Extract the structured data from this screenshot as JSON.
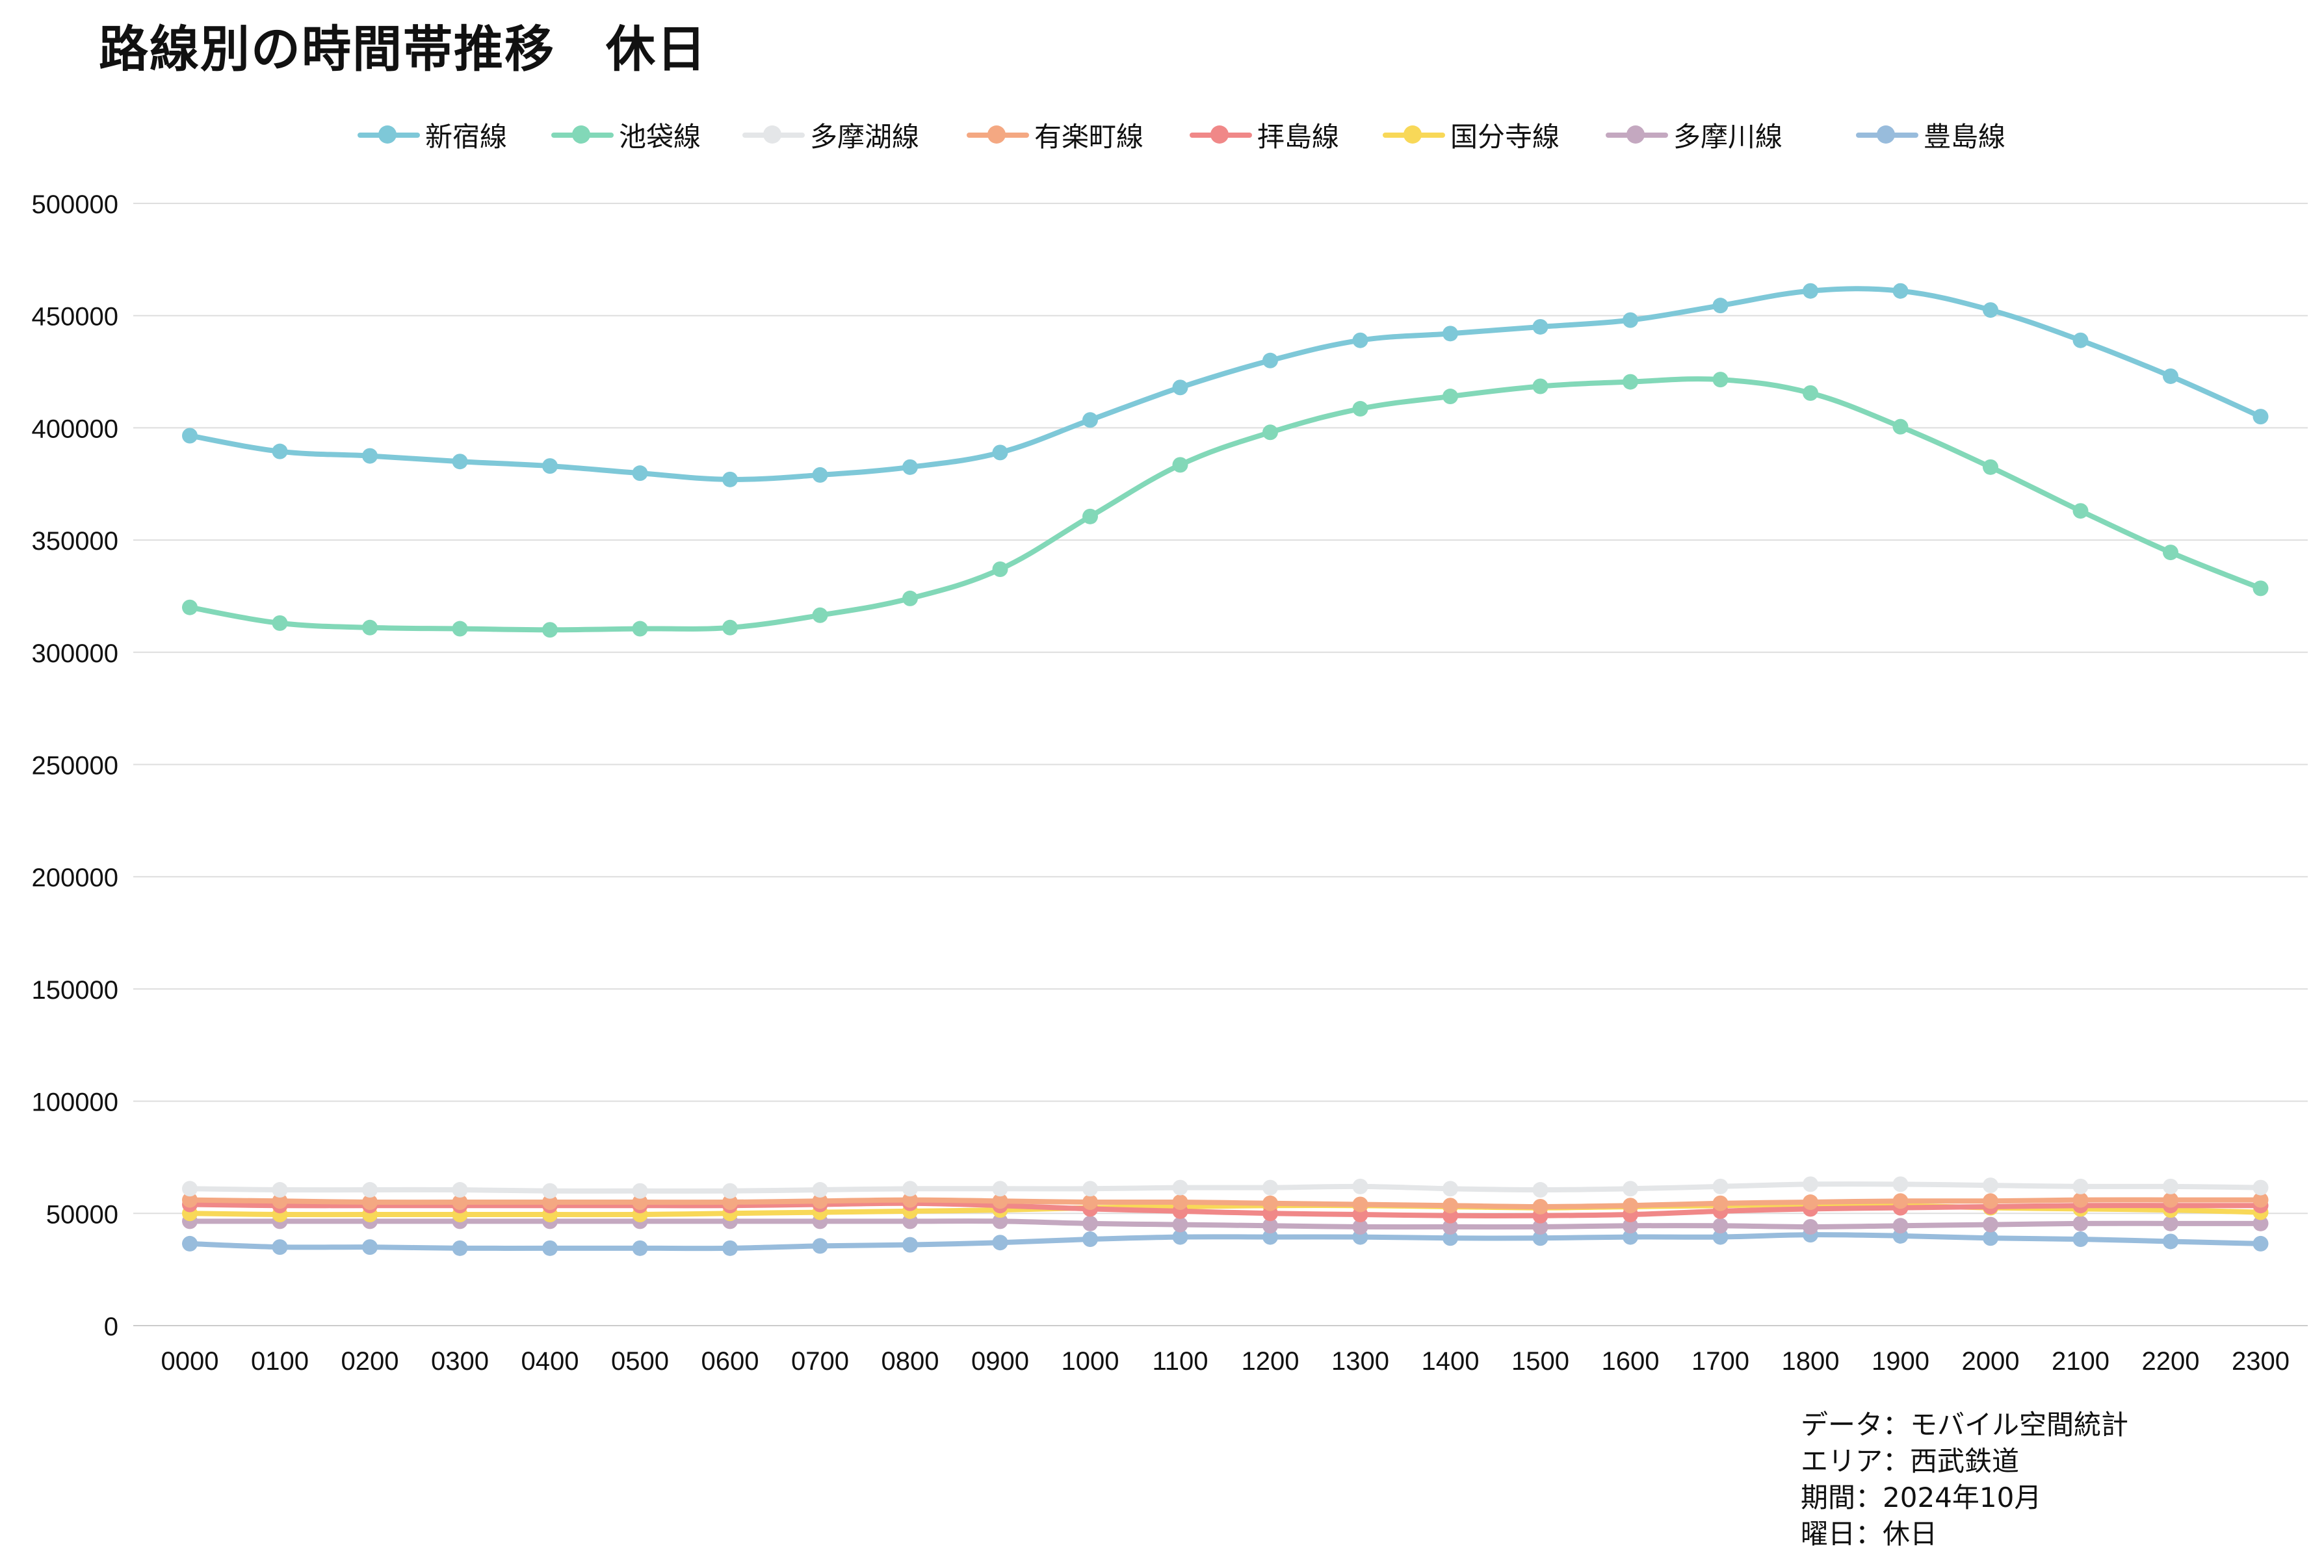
{
  "title": "路線別の時間帯推移　休日",
  "chart_data": {
    "type": "line",
    "title": "路線別の時間帯推移　休日",
    "xlabel": "",
    "ylabel": "",
    "ylim": [
      0,
      500000
    ],
    "yticks": [
      0,
      50000,
      100000,
      150000,
      200000,
      250000,
      300000,
      350000,
      400000,
      450000,
      500000
    ],
    "grid": true,
    "legend_position": "top",
    "categories": [
      "0000",
      "0100",
      "0200",
      "0300",
      "0400",
      "0500",
      "0600",
      "0700",
      "0800",
      "0900",
      "1000",
      "1100",
      "1200",
      "1300",
      "1400",
      "1500",
      "1600",
      "1700",
      "1800",
      "1900",
      "2000",
      "2100",
      "2200",
      "2300"
    ],
    "series": [
      {
        "name": "新宿線",
        "color": "#7ec8d8",
        "values": [
          396500,
          389500,
          387500,
          385000,
          383000,
          379800,
          377000,
          379000,
          382500,
          389000,
          403500,
          418000,
          430000,
          439000,
          442000,
          445000,
          448000,
          454500,
          461000,
          461000,
          452500,
          439000,
          423000,
          405000
        ]
      },
      {
        "name": "池袋線",
        "color": "#82d8b8",
        "values": [
          320000,
          313000,
          311000,
          310500,
          310000,
          310500,
          311000,
          316500,
          324000,
          337000,
          360500,
          383500,
          398000,
          408500,
          414000,
          418500,
          420500,
          421500,
          415500,
          400500,
          382500,
          363000,
          344500,
          328500
        ]
      },
      {
        "name": "多摩湖線",
        "color": "#e4e6e8",
        "values": [
          61000,
          60500,
          60500,
          60500,
          60000,
          60000,
          60000,
          60500,
          61000,
          61000,
          61000,
          61500,
          61500,
          62000,
          61000,
          60500,
          61000,
          62000,
          63000,
          63000,
          62500,
          62000,
          62000,
          61500
        ]
      },
      {
        "name": "有楽町線",
        "color": "#f4a882",
        "values": [
          56000,
          55500,
          55000,
          55000,
          55000,
          55000,
          55000,
          55500,
          56000,
          55500,
          55000,
          55000,
          54500,
          54000,
          53500,
          53000,
          53500,
          54500,
          55000,
          55500,
          55500,
          56000,
          56000,
          56000
        ]
      },
      {
        "name": "拝島線",
        "color": "#f08888",
        "values": [
          54000,
          53500,
          53500,
          53500,
          53500,
          53500,
          53500,
          54000,
          54500,
          53500,
          52000,
          51000,
          50000,
          49500,
          49000,
          49000,
          49500,
          51000,
          52000,
          52500,
          53000,
          53500,
          53500,
          53500
        ]
      },
      {
        "name": "国分寺線",
        "color": "#f8d858",
        "values": [
          50000,
          49500,
          49500,
          49500,
          49500,
          49500,
          50000,
          50500,
          51000,
          51500,
          52500,
          53000,
          53500,
          53500,
          53000,
          52500,
          53000,
          53500,
          54000,
          53500,
          52500,
          52000,
          51500,
          50500
        ]
      },
      {
        "name": "多摩川線",
        "color": "#c4a8c0",
        "values": [
          46500,
          46500,
          46500,
          46500,
          46500,
          46500,
          46500,
          46500,
          46500,
          46500,
          45500,
          45000,
          44500,
          44000,
          44000,
          44000,
          44500,
          44500,
          44000,
          44500,
          45000,
          45500,
          45500,
          45500
        ]
      },
      {
        "name": "豊島線",
        "color": "#98bcdc",
        "values": [
          36500,
          35000,
          35000,
          34500,
          34500,
          34500,
          34500,
          35500,
          36000,
          37000,
          38500,
          39500,
          39500,
          39500,
          39000,
          39000,
          39500,
          39500,
          40500,
          40000,
          39000,
          38500,
          37500,
          36500
        ]
      }
    ]
  },
  "footnote": {
    "line1": "データ：モバイル空間統計",
    "line2": "エリア：西武鉄道",
    "line3": "期間：2024年10月",
    "line4": "曜日：休日"
  }
}
